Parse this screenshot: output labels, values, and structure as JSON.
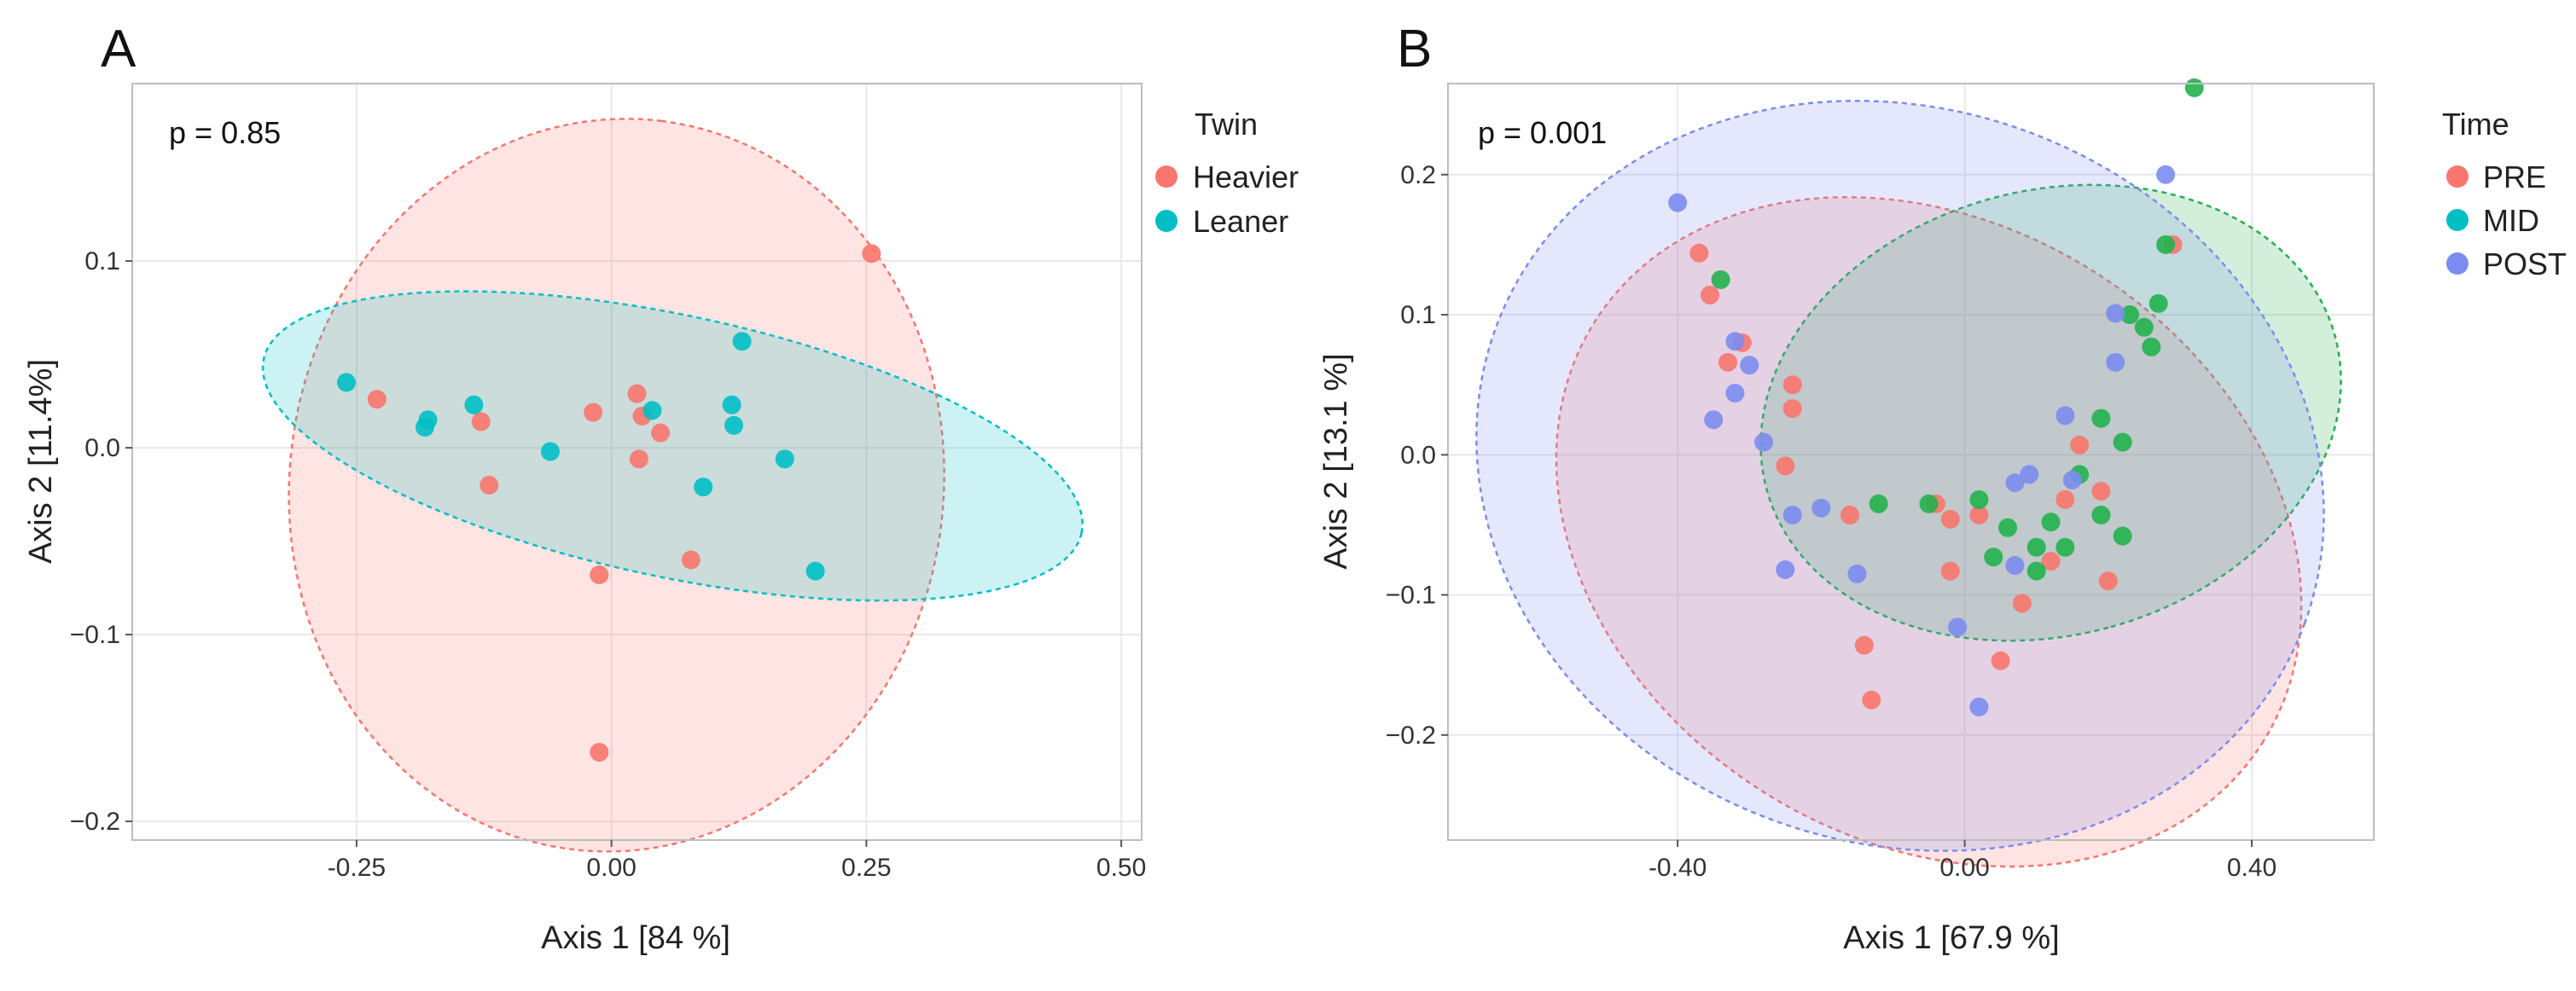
{
  "chart_data": [
    {
      "panel": "A",
      "type": "scatter",
      "annotation": "p = 0.85",
      "xlabel": "Axis 1 [84 %]",
      "ylabel": "Axis 2 [11.4%]",
      "xlim": [
        -0.47,
        0.52
      ],
      "ylim": [
        -0.21,
        0.195
      ],
      "xticks": [
        -0.25,
        0.0,
        0.25,
        0.5
      ],
      "xtick_labels": [
        "-0.25",
        "0.00",
        "0.25",
        "0.50"
      ],
      "yticks": [
        0.1,
        0.0,
        -0.1,
        -0.2
      ],
      "ytick_labels": [
        "0.1",
        "0.0",
        "−0.1",
        "−0.2"
      ],
      "legend": {
        "title": "Twin",
        "position": "right"
      },
      "series": [
        {
          "name": "Heavier",
          "color": "#f8766d",
          "ellipse": {
            "cx": 0.005,
            "cy": -0.02,
            "rx": 0.36,
            "ry": 0.175,
            "angle_deg": 83
          },
          "points": [
            [
              0.255,
              0.104
            ],
            [
              -0.23,
              0.026
            ],
            [
              -0.128,
              0.014
            ],
            [
              -0.12,
              -0.02
            ],
            [
              -0.018,
              0.019
            ],
            [
              0.025,
              0.029
            ],
            [
              0.03,
              0.017
            ],
            [
              0.048,
              0.008
            ],
            [
              0.027,
              -0.006
            ],
            [
              -0.012,
              -0.068
            ],
            [
              0.078,
              -0.06
            ],
            [
              -0.012,
              -0.163
            ]
          ]
        },
        {
          "name": "Leaner",
          "color": "#00bfc4",
          "ellipse": {
            "cx": 0.06,
            "cy": 0.001,
            "rx": 0.41,
            "ry": 0.07,
            "angle_deg": -12
          },
          "points": [
            [
              -0.26,
              0.035
            ],
            [
              -0.18,
              0.015
            ],
            [
              -0.183,
              0.011
            ],
            [
              -0.135,
              0.023
            ],
            [
              -0.06,
              -0.002
            ],
            [
              0.04,
              0.02
            ],
            [
              0.128,
              0.057
            ],
            [
              0.118,
              0.023
            ],
            [
              0.12,
              0.012
            ],
            [
              0.09,
              -0.021
            ],
            [
              0.17,
              -0.006
            ],
            [
              0.2,
              -0.066
            ]
          ]
        }
      ]
    },
    {
      "panel": "B",
      "type": "scatter",
      "annotation": "p = 0.001",
      "xlabel": "Axis 1 [67.9 %]",
      "ylabel": "Axis 2 [13.1 %]",
      "xlim": [
        -0.72,
        0.57
      ],
      "ylim": [
        -0.275,
        0.265
      ],
      "xticks": [
        -0.4,
        0.0,
        0.4
      ],
      "xtick_labels": [
        "-0.40",
        "0.00",
        "0.40"
      ],
      "yticks": [
        0.2,
        0.1,
        0.0,
        -0.1,
        -0.2
      ],
      "ytick_labels": [
        "0.2",
        "0.1",
        "0.0",
        "−0.1",
        "−0.2"
      ],
      "legend": {
        "title": "Time",
        "position": "right"
      },
      "series": [
        {
          "name": "PRE",
          "color": "#f8766d",
          "ellipse_color": "#f8766d",
          "ellipse": {
            "cx": -0.05,
            "cy": -0.055,
            "rx": 0.55,
            "ry": 0.22,
            "angle_deg": -32
          },
          "points": [
            [
              -0.37,
              0.144
            ],
            [
              -0.355,
              0.114
            ],
            [
              -0.33,
              0.066
            ],
            [
              -0.31,
              0.08
            ],
            [
              -0.24,
              0.05
            ],
            [
              -0.24,
              0.033
            ],
            [
              -0.25,
              -0.008
            ],
            [
              -0.16,
              -0.043
            ],
            [
              -0.14,
              -0.136
            ],
            [
              -0.13,
              -0.175
            ],
            [
              -0.04,
              -0.035
            ],
            [
              -0.02,
              -0.046
            ],
            [
              -0.02,
              -0.083
            ],
            [
              0.02,
              -0.043
            ],
            [
              0.05,
              -0.147
            ],
            [
              0.08,
              -0.106
            ],
            [
              0.14,
              -0.032
            ],
            [
              0.16,
              0.007
            ],
            [
              0.19,
              -0.026
            ],
            [
              0.2,
              -0.09
            ],
            [
              0.29,
              0.15
            ],
            [
              0.12,
              -0.076
            ]
          ]
        },
        {
          "name": "MID",
          "color": "#00bfc4",
          "ellipse_color": "#22b14c",
          "ellipse": {
            "cx": 0.12,
            "cy": 0.03,
            "rx": 0.31,
            "ry": 0.21,
            "angle_deg": -75
          },
          "points": [
            [
              0.32,
              0.262
            ],
            [
              -0.34,
              0.125
            ],
            [
              0.28,
              0.15
            ],
            [
              0.27,
              0.108
            ],
            [
              0.23,
              0.1
            ],
            [
              0.25,
              0.091
            ],
            [
              0.26,
              0.077
            ],
            [
              0.19,
              0.026
            ],
            [
              0.22,
              0.009
            ],
            [
              -0.12,
              -0.035
            ],
            [
              -0.05,
              -0.035
            ],
            [
              0.02,
              -0.032
            ],
            [
              0.06,
              -0.052
            ],
            [
              0.12,
              -0.048
            ],
            [
              0.19,
              -0.043
            ],
            [
              0.1,
              -0.066
            ],
            [
              0.14,
              -0.066
            ],
            [
              0.04,
              -0.073
            ],
            [
              0.1,
              -0.083
            ],
            [
              0.22,
              -0.058
            ],
            [
              0.16,
              -0.014
            ]
          ]
        },
        {
          "name": "POST",
          "color": "#7b8cf0",
          "ellipse_color": "#7b8cf0",
          "ellipse": {
            "cx": -0.09,
            "cy": -0.015,
            "rx": 0.6,
            "ry": 0.262,
            "angle_deg": -20
          },
          "points": [
            [
              -0.4,
              0.18
            ],
            [
              0.28,
              0.2
            ],
            [
              -0.32,
              0.081
            ],
            [
              -0.3,
              0.064
            ],
            [
              -0.32,
              0.044
            ],
            [
              -0.35,
              0.025
            ],
            [
              -0.28,
              0.009
            ],
            [
              -0.2,
              -0.038
            ],
            [
              -0.24,
              -0.043
            ],
            [
              -0.25,
              -0.082
            ],
            [
              -0.15,
              -0.085
            ],
            [
              0.21,
              0.101
            ],
            [
              0.21,
              0.066
            ],
            [
              0.14,
              0.028
            ],
            [
              0.15,
              -0.018
            ],
            [
              0.07,
              -0.02
            ],
            [
              0.09,
              -0.014
            ],
            [
              0.07,
              -0.079
            ],
            [
              -0.01,
              -0.123
            ],
            [
              0.02,
              -0.18
            ]
          ]
        }
      ]
    }
  ]
}
